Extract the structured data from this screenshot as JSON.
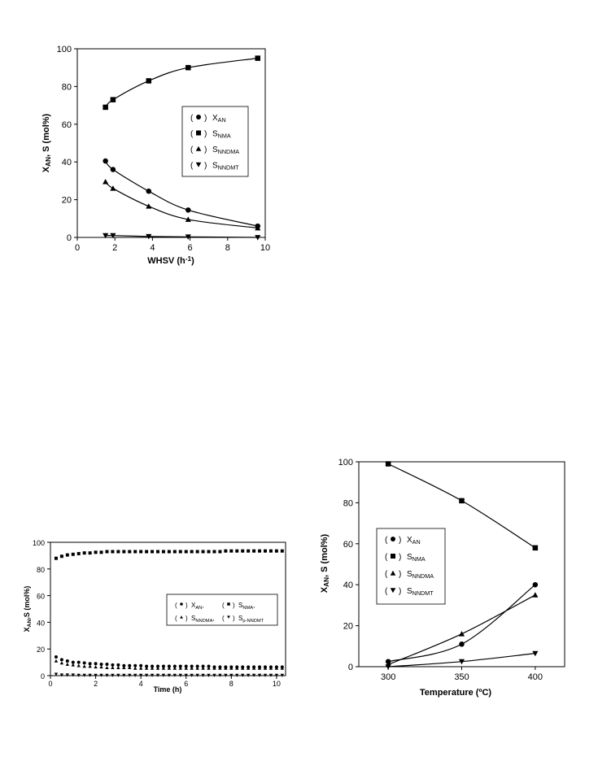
{
  "chart_data": [
    {
      "id": "c1",
      "type": "line",
      "xlabel": "WHSV (h",
      "xlabel_sup": "-1",
      "xlabel_end": ")",
      "ylabel_parts": [
        [
          "X",
          "",
          false
        ],
        [
          "AN",
          "sub",
          false
        ],
        [
          ", S (mol%)",
          "",
          false
        ]
      ],
      "xlim": [
        0,
        10
      ],
      "ylim": [
        0,
        100
      ],
      "xticks": [
        0,
        2,
        4,
        6,
        8,
        10
      ],
      "yticks": [
        0,
        20,
        40,
        60,
        80,
        100
      ],
      "legend_position": "center-right",
      "series": [
        {
          "name": "X",
          "sub": "AN",
          "marker": "circle",
          "x": [
            1.5,
            1.9,
            3.8,
            5.9,
            9.6
          ],
          "y": [
            40.5,
            36,
            24.5,
            14.5,
            6
          ]
        },
        {
          "name": "S",
          "sub": "NMA",
          "marker": "square",
          "x": [
            1.5,
            1.9,
            3.8,
            5.9,
            9.6
          ],
          "y": [
            69,
            73,
            83,
            90,
            95
          ]
        },
        {
          "name": "S",
          "sub": "NNDMA",
          "marker": "triangle-up",
          "x": [
            1.5,
            1.9,
            3.8,
            5.9,
            9.6
          ],
          "y": [
            29.5,
            26,
            16.5,
            9.5,
            5
          ]
        },
        {
          "name": "S",
          "sub": "NNDMT",
          "marker": "triangle-down",
          "x": [
            1.5,
            1.9,
            3.8,
            5.9,
            9.6
          ],
          "y": [
            1,
            1,
            0.5,
            0.3,
            0
          ]
        }
      ]
    },
    {
      "id": "c2",
      "type": "scatter",
      "xlabel": "Time (h)",
      "ylabel_parts": [
        [
          "X",
          "",
          false
        ],
        [
          "AN",
          "sub",
          false
        ],
        [
          ",S (mol%)",
          "",
          false
        ]
      ],
      "xlim": [
        0,
        10.4
      ],
      "ylim": [
        0,
        100
      ],
      "xticks": [
        0,
        2,
        4,
        6,
        8,
        10
      ],
      "yticks": [
        0,
        20,
        40,
        60,
        80,
        100
      ],
      "legend_position": "center-right",
      "series": [
        {
          "name": "X",
          "sub": "AN",
          "suffix": ",",
          "marker": "circle"
        },
        {
          "name": "S",
          "sub": "NMA",
          "suffix": ",",
          "marker": "square"
        },
        {
          "name": "S",
          "sub": "NNDMA",
          "suffix": ",",
          "marker": "triangle-up"
        },
        {
          "name": "S",
          "sub": "p-NNDMT",
          "suffix": "",
          "marker": "triangle-down"
        }
      ],
      "x": [
        0.25,
        0.5,
        0.75,
        1.0,
        1.25,
        1.5,
        1.75,
        2.0,
        2.25,
        2.5,
        2.75,
        3.0,
        3.25,
        3.5,
        3.75,
        4.0,
        4.25,
        4.5,
        4.75,
        5.0,
        5.25,
        5.5,
        5.75,
        6.0,
        6.25,
        6.5,
        6.75,
        7.0,
        7.25,
        7.5,
        7.75,
        8.0,
        8.25,
        8.5,
        8.75,
        9.0,
        9.25,
        9.5,
        9.75,
        10.0,
        10.25
      ],
      "y_series": [
        [
          14,
          12,
          11,
          10,
          10,
          9.5,
          9,
          9,
          8.5,
          8.5,
          8,
          8,
          7.5,
          7.5,
          7.5,
          7.5,
          7,
          7,
          7,
          7,
          7,
          7,
          7,
          7,
          7,
          7,
          7,
          7,
          6.5,
          6.5,
          6.5,
          6.5,
          6.5,
          6.5,
          6.5,
          6.5,
          6.5,
          6.5,
          6.5,
          6.5,
          6.5
        ],
        [
          88,
          89.5,
          90.5,
          91,
          91.5,
          92,
          92,
          92.5,
          92.5,
          93,
          93,
          93,
          93,
          93,
          93,
          93,
          93,
          93,
          93,
          93,
          93,
          93,
          93,
          93,
          93,
          93,
          93,
          93,
          93,
          93,
          93.5,
          93.5,
          93.5,
          93.5,
          93.5,
          93.5,
          93.5,
          93.5,
          93.5,
          93.5,
          93.5
        ],
        [
          11,
          9.5,
          8.5,
          8,
          7.5,
          7,
          7,
          6.5,
          6.5,
          6,
          6,
          6,
          6,
          6,
          5.5,
          5.5,
          5.5,
          5.5,
          5.5,
          5.5,
          5.5,
          5.5,
          5.5,
          5.5,
          5.5,
          5.5,
          5.5,
          5.5,
          5.5,
          5.5,
          5.5,
          5.5,
          5.5,
          5.5,
          5.5,
          5.5,
          5.5,
          5.5,
          5.5,
          5.5,
          5.5
        ],
        [
          1,
          0.5,
          0.5,
          0.5,
          0.3,
          0.3,
          0.3,
          0.3,
          0.3,
          0.3,
          0.3,
          0.3,
          0.3,
          0.3,
          0.3,
          0.3,
          0.3,
          0.3,
          0.3,
          0.3,
          0.3,
          0.3,
          0.3,
          0.3,
          0.3,
          0.3,
          0.3,
          0.3,
          0.3,
          0.3,
          0.3,
          0.3,
          0.3,
          0.3,
          0.3,
          0.3,
          0.3,
          0.3,
          0.3,
          0.3,
          0.3
        ]
      ]
    },
    {
      "id": "c3",
      "type": "line",
      "xlabel": "Temperature (ºC)",
      "ylabel_parts": [
        [
          "X",
          "",
          false
        ],
        [
          "AN",
          "sub",
          false
        ],
        [
          ", S (mol%)",
          "",
          false
        ]
      ],
      "xlim": [
        280,
        420
      ],
      "ylim": [
        0,
        100
      ],
      "xticks": [
        300,
        350,
        400
      ],
      "yticks": [
        0,
        20,
        40,
        60,
        80,
        100
      ],
      "legend_position": "center-left",
      "series": [
        {
          "name": "X",
          "sub": "AN",
          "marker": "circle",
          "x": [
            300,
            350,
            400
          ],
          "y": [
            2.5,
            11,
            40
          ]
        },
        {
          "name": "S",
          "sub": "NMA",
          "marker": "square",
          "x": [
            300,
            350,
            400
          ],
          "y": [
            99,
            81,
            58
          ]
        },
        {
          "name": "S",
          "sub": "NNDMA",
          "marker": "triangle-up",
          "x": [
            300,
            350,
            400
          ],
          "y": [
            1,
            16,
            35
          ]
        },
        {
          "name": "S",
          "sub": "NNDMT",
          "marker": "triangle-down",
          "x": [
            300,
            350,
            400
          ],
          "y": [
            0,
            2.5,
            6.5
          ]
        }
      ]
    }
  ]
}
